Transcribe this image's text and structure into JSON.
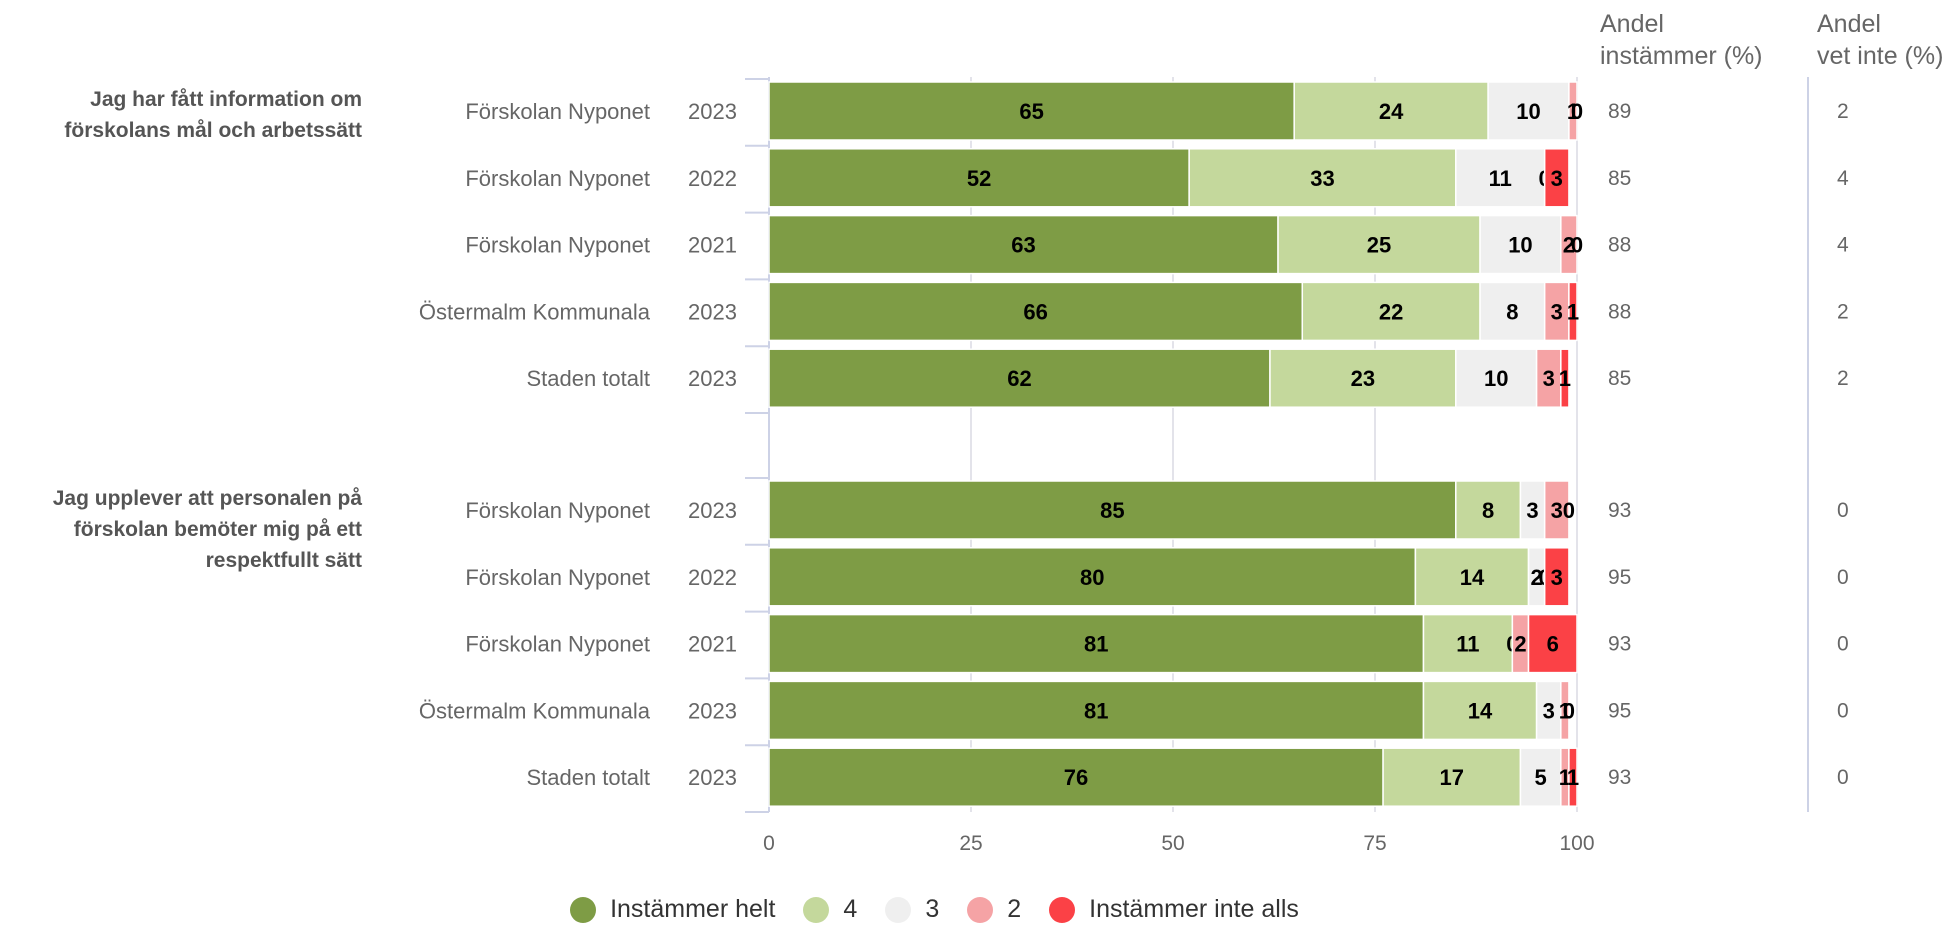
{
  "chart_data": {
    "type": "bar",
    "orientation": "horizontal",
    "stacked": true,
    "xlim": [
      0,
      100
    ],
    "x_ticks": [
      "0",
      "25",
      "50",
      "75",
      "100"
    ],
    "grid": true,
    "legend_position": "bottom",
    "column_headers": {
      "agree": [
        "Andel",
        "instämmer (%)"
      ],
      "dont_know": [
        "Andel",
        "vet inte (%)"
      ]
    },
    "series": [
      {
        "name": "Instämmer helt",
        "color": "#7e9c45"
      },
      {
        "name": "4",
        "color": "#c4d89c"
      },
      {
        "name": "3",
        "color": "#efefef"
      },
      {
        "name": "2",
        "color": "#f5a3a5"
      },
      {
        "name": "Instämmer inte alls",
        "color": "#fb4146"
      }
    ],
    "groups": [
      {
        "question": "Jag har fått information om förskolans mål och arbetssätt",
        "rows": [
          {
            "unit": "Förskolan Nyponet",
            "year": "2023",
            "values": [
              65,
              24,
              10,
              1,
              0
            ],
            "andel_instammer": "89",
            "andel_vet_inte": "2"
          },
          {
            "unit": "Förskolan Nyponet",
            "year": "2022",
            "values": [
              52,
              33,
              11,
              0,
              3
            ],
            "andel_instammer": "85",
            "andel_vet_inte": "4"
          },
          {
            "unit": "Förskolan Nyponet",
            "year": "2021",
            "values": [
              63,
              25,
              10,
              2,
              0
            ],
            "andel_instammer": "88",
            "andel_vet_inte": "4"
          },
          {
            "unit": "Östermalm Kommunala",
            "year": "2023",
            "values": [
              66,
              22,
              8,
              3,
              1
            ],
            "andel_instammer": "88",
            "andel_vet_inte": "2"
          },
          {
            "unit": "Staden totalt",
            "year": "2023",
            "values": [
              62,
              23,
              10,
              3,
              1
            ],
            "andel_instammer": "85",
            "andel_vet_inte": "2"
          }
        ]
      },
      {
        "question": "Jag upplever att personalen på förskolan bemöter mig på ett respektfullt sätt",
        "rows": [
          {
            "unit": "Förskolan Nyponet",
            "year": "2023",
            "values": [
              85,
              8,
              3,
              3,
              0
            ],
            "andel_instammer": "93",
            "andel_vet_inte": "0"
          },
          {
            "unit": "Förskolan Nyponet",
            "year": "2022",
            "values": [
              80,
              14,
              2,
              0,
              3
            ],
            "andel_instammer": "95",
            "andel_vet_inte": "0"
          },
          {
            "unit": "Förskolan Nyponet",
            "year": "2021",
            "values": [
              81,
              11,
              0,
              2,
              6
            ],
            "andel_instammer": "93",
            "andel_vet_inte": "0"
          },
          {
            "unit": "Östermalm Kommunala",
            "year": "2023",
            "values": [
              81,
              14,
              3,
              1,
              0
            ],
            "andel_instammer": "95",
            "andel_vet_inte": "0"
          },
          {
            "unit": "Staden totalt",
            "year": "2023",
            "values": [
              76,
              17,
              5,
              1,
              1
            ],
            "andel_instammer": "93",
            "andel_vet_inte": "0"
          }
        ]
      }
    ]
  }
}
